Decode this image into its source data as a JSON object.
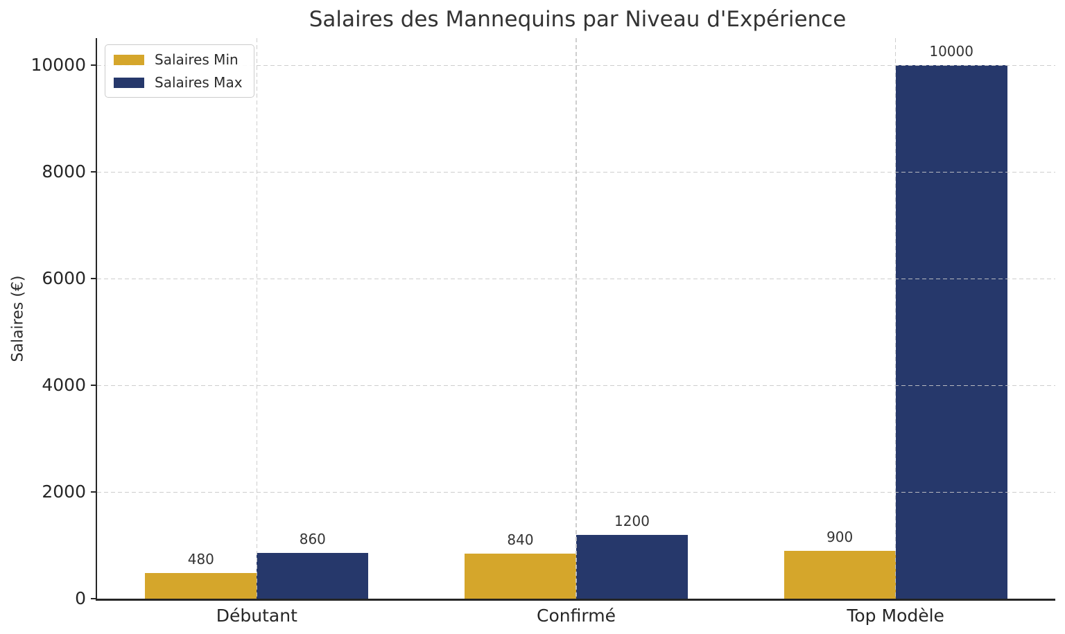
{
  "title": "Salaires des Mannequins par Niveau d'Expérience",
  "chart_data": {
    "type": "bar",
    "title": "Salaires des Mannequins par Niveau d'Expérience",
    "categories": [
      "Débutant",
      "Confirmé",
      "Top Modèle"
    ],
    "series": [
      {
        "name": "Salaires Min",
        "color": "#D5A62B",
        "values": [
          480,
          840,
          900
        ]
      },
      {
        "name": "Salaires Max",
        "color": "#26386B",
        "values": [
          860,
          1200,
          10000
        ]
      }
    ],
    "xlabel": "",
    "ylabel": "Salaires (€)",
    "ylim": [
      0,
      10500
    ],
    "yticks": [
      0,
      2000,
      4000,
      6000,
      8000,
      10000
    ],
    "grid": "dashed, horizontal at yticks and vertical at category centers, drawn over bars",
    "legend_position": "upper left",
    "bar_value_labels": true,
    "colors": {
      "background": "#ffffff",
      "text": "#2b2b2b",
      "grid": "#cccccc",
      "spine": "#262626"
    }
  }
}
